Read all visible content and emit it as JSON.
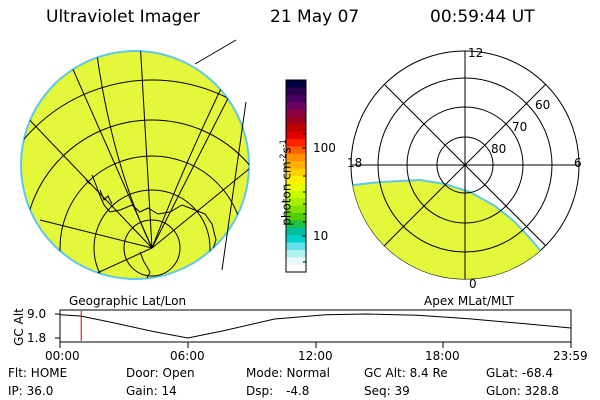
{
  "header": {
    "instrument": "Ultraviolet Imager",
    "date": "21 May 07",
    "time": "00:59:44 UT"
  },
  "left_panel": {
    "caption": "Geographic Lat/Lon"
  },
  "colorbar": {
    "unit_label": "photon cm",
    "unit_exp1": "-2",
    "unit_s": "s",
    "unit_exp2": "-1",
    "tick_high": "100",
    "tick_low": "10",
    "colors": [
      "#000040",
      "#2a004a",
      "#4a0060",
      "#6a0060",
      "#8a0040",
      "#a00020",
      "#c00000",
      "#e00000",
      "#ff2000",
      "#ff6000",
      "#ff9000",
      "#ffb000",
      "#ffd000",
      "#ffee00",
      "#e8ff00",
      "#c8ff00",
      "#a8f000",
      "#80e000",
      "#50d000",
      "#20c040",
      "#00c0a0",
      "#00d0d0",
      "#60e0e8",
      "#b0f0f0",
      "#e8f8f8",
      "#ffffff"
    ]
  },
  "right_panel": {
    "caption": "Apex MLat/MLT",
    "mlt_labels": {
      "top": "12",
      "left": "18",
      "right": "6",
      "bottom": "0"
    },
    "mlat_labels": [
      "60",
      "70",
      "80"
    ]
  },
  "timeline": {
    "axis_label": "GC Alt",
    "y_high": "9.0",
    "y_low": "1.8",
    "ticks": [
      "00:00",
      "06:00",
      "12:00",
      "18:00",
      "23:59"
    ],
    "current_time_fraction": 0.0415,
    "altitude_curve": [
      [
        0.0,
        8.8
      ],
      [
        0.04,
        8.4
      ],
      [
        0.1,
        6.5
      ],
      [
        0.18,
        3.8
      ],
      [
        0.25,
        1.8
      ],
      [
        0.32,
        4.0
      ],
      [
        0.42,
        7.5
      ],
      [
        0.52,
        8.8
      ],
      [
        0.6,
        9.0
      ],
      [
        0.7,
        8.6
      ],
      [
        0.8,
        7.6
      ],
      [
        0.9,
        6.2
      ],
      [
        1.0,
        4.8
      ]
    ]
  },
  "info": {
    "flt": "Flt: HOME",
    "ip": "IP: 36.0",
    "door": "Door: Open",
    "gain": "Gain: 14",
    "mode": "Mode: Normal",
    "dsp_label": "Dsp:",
    "dsp_value": "-4.8",
    "gc_alt": "GC Alt: 8.4 Re",
    "seq": "Seq: 39",
    "glat": "GLat: -68.4",
    "glon": "GLon: 328.8"
  },
  "colors": {
    "aurora_fill": "#e4f73a",
    "aurora_edge": "#5ec8e6",
    "cursor": "#d00000"
  }
}
